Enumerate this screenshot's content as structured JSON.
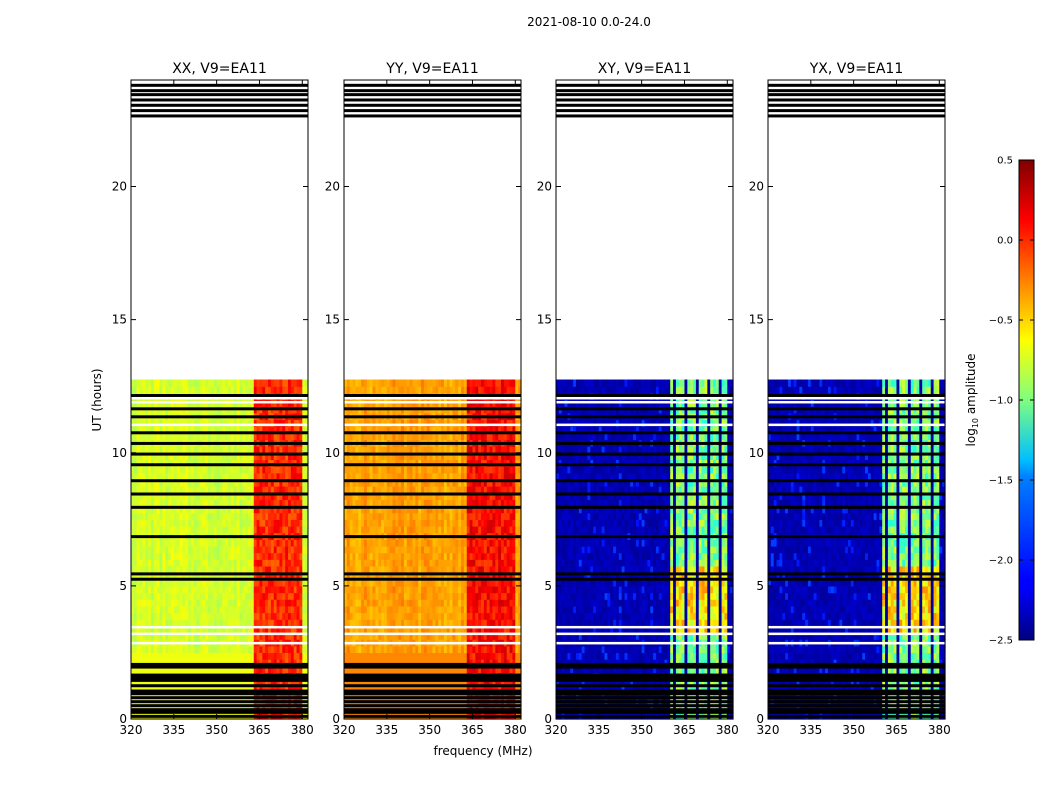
{
  "figure": {
    "suptitle": "2021-08-10 0.0-24.0",
    "xlabel": "frequency (MHz)",
    "ylabel": "UT (hours)"
  },
  "colorbar": {
    "label_prefix": "log",
    "label_sub": "10",
    "label_suffix": " amplitude",
    "min": -2.5,
    "max": 0.5,
    "tick_values": [
      0.5,
      0.0,
      -0.5,
      -1.0,
      -1.5,
      -2.0,
      -2.5
    ],
    "tick_labels": [
      "0.5",
      "0.0",
      "−0.5",
      "−1.0",
      "−1.5",
      "−2.0",
      "−2.5"
    ]
  },
  "chart_data": {
    "type": "heatmap",
    "xlim": [
      320,
      382
    ],
    "ylim": [
      0,
      24
    ],
    "x_ticks": [
      320,
      335,
      350,
      365,
      380
    ],
    "y_ticks": [
      0,
      5,
      10,
      15,
      20
    ],
    "x_tick_labels": [
      "320",
      "335",
      "350",
      "365",
      "380"
    ],
    "y_tick_labels": [
      "0",
      "5",
      "10",
      "15",
      "20"
    ],
    "data_end_hour": 12.75,
    "panels": [
      {
        "title": "XX, V9=EA11",
        "kind": "parallel",
        "base": -0.75,
        "rfi_band": [
          363,
          380
        ],
        "rfi_level": 0.0
      },
      {
        "title": "YY, V9=EA11",
        "kind": "parallel",
        "base": -0.35,
        "rfi_band": [
          363,
          380
        ],
        "rfi_level": 0.1
      },
      {
        "title": "XY, V9=EA11",
        "kind": "cross",
        "base": -2.35,
        "rfi_band": [
          360,
          380
        ],
        "rfi_level": -1.0
      },
      {
        "title": "YX, V9=EA11",
        "kind": "cross",
        "base": -2.35,
        "rfi_band": [
          360,
          380
        ],
        "rfi_level": -1.0
      }
    ],
    "flagged_hours": [
      0.1,
      0.25,
      0.35,
      0.5,
      0.65,
      0.8,
      0.95,
      1.05,
      1.25,
      1.45,
      1.55,
      1.65,
      1.95,
      2.05,
      5.25,
      5.45,
      6.85,
      7.95,
      8.45,
      8.95,
      9.55,
      9.95,
      10.35,
      10.75,
      11.35,
      11.65,
      12.15,
      22.65,
      22.85,
      23.05,
      23.25,
      23.45,
      23.6,
      23.8
    ],
    "blank_rows": [
      2.85,
      3.2,
      3.45,
      11.05,
      11.9,
      12.05
    ]
  }
}
